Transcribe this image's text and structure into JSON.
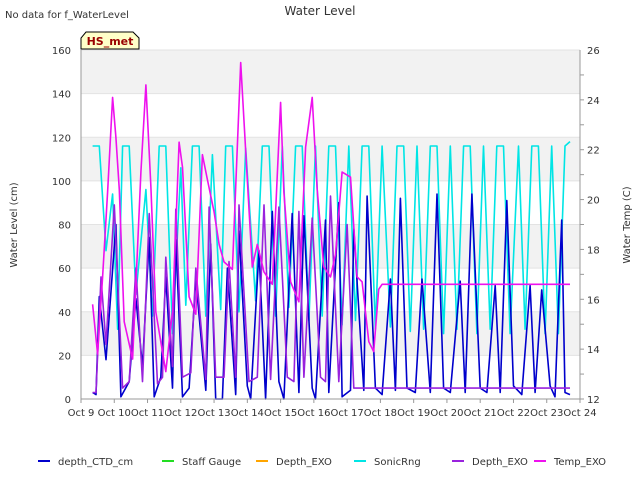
{
  "header": {
    "no_data_note": "No data for f_WaterLevel"
  },
  "station_badge": "HS_met",
  "chart_data": {
    "type": "line",
    "title": "Water Level",
    "ylabel": "Water Level (cm)",
    "y2label": "Water Temp (C)",
    "ylim": [
      0,
      160
    ],
    "y2lim": [
      12,
      26
    ],
    "yticks": [
      0,
      20,
      40,
      60,
      80,
      100,
      120,
      140,
      160
    ],
    "y2ticks": [
      12,
      14,
      16,
      18,
      20,
      22,
      24,
      26
    ],
    "xlim": [
      0,
      15
    ],
    "xtick_labels": [
      "Oct 9",
      "Oct 10",
      "Oct 11",
      "Oct 12",
      "Oct 13",
      "Oct 14",
      "Oct 15",
      "Oct 16",
      "Oct 17",
      "Oct 18",
      "Oct 19",
      "Oct 20",
      "Oct 21",
      "Oct 22",
      "Oct 23",
      "Oct 24"
    ],
    "grid": "horizontal bands",
    "legend": "bottom",
    "series": [
      {
        "name": "depth_CTD_cm",
        "color": "#0000cc",
        "axis": "left",
        "x": [
          0.35,
          0.45,
          0.55,
          0.75,
          1.05,
          1.2,
          1.45,
          1.65,
          1.85,
          2.05,
          2.2,
          2.4,
          2.55,
          2.75,
          2.85,
          3.05,
          3.25,
          3.45,
          3.75,
          3.9,
          4.05,
          4.25,
          4.4,
          4.65,
          4.75,
          5.0,
          5.1,
          5.35,
          5.55,
          5.75,
          5.95,
          6.1,
          6.35,
          6.55,
          6.7,
          6.95,
          7.05,
          7.35,
          7.45,
          7.75,
          7.85,
          8.1,
          8.2,
          8.5,
          8.6,
          8.85,
          9.05,
          9.3,
          9.45,
          9.6,
          9.8,
          10.05,
          10.25,
          10.5,
          10.7,
          10.9,
          11.1,
          11.4,
          11.55,
          11.75,
          12.0,
          12.2,
          12.45,
          12.6,
          12.8,
          13.0,
          13.25,
          13.5,
          13.65,
          13.85,
          14.1,
          14.25,
          14.45,
          14.55,
          14.7
        ],
        "y": [
          3,
          2,
          47,
          18,
          80,
          1,
          8,
          46,
          15,
          74,
          1,
          10,
          56,
          5,
          73,
          1,
          5,
          55,
          4,
          71,
          0,
          0,
          60,
          2,
          77,
          6,
          0,
          68,
          0,
          86,
          8,
          0,
          85,
          3,
          84,
          5,
          0,
          82,
          3,
          90,
          1,
          4,
          78,
          4,
          93,
          5,
          2,
          55,
          4,
          92,
          5,
          3,
          55,
          3,
          94,
          5,
          3,
          54,
          3,
          94,
          5,
          3,
          52,
          3,
          91,
          6,
          2,
          52,
          3,
          50,
          6,
          1,
          82,
          3,
          2
        ]
      },
      {
        "name": "Staff Gauge",
        "color": "#22dd22",
        "axis": "left",
        "x": [],
        "y": []
      },
      {
        "name": "Depth_EXO",
        "color": "#ffa500",
        "axis": "left",
        "x": [],
        "y": []
      },
      {
        "name": "SonicRng",
        "color": "#00e5e5",
        "axis": "left",
        "x": [
          0.35,
          0.55,
          0.75,
          0.95,
          1.1,
          1.25,
          1.45,
          1.65,
          1.95,
          2.15,
          2.35,
          2.55,
          2.75,
          3.0,
          3.15,
          3.35,
          3.55,
          3.75,
          3.95,
          4.2,
          4.35,
          4.55,
          4.75,
          4.95,
          5.25,
          5.45,
          5.65,
          5.85,
          6.05,
          6.25,
          6.45,
          6.65,
          6.85,
          7.05,
          7.25,
          7.45,
          7.65,
          7.85,
          8.05,
          8.25,
          8.45,
          8.65,
          8.85,
          9.05,
          9.3,
          9.5,
          9.7,
          9.9,
          10.1,
          10.3,
          10.5,
          10.7,
          10.9,
          11.1,
          11.3,
          11.5,
          11.7,
          11.9,
          12.1,
          12.3,
          12.5,
          12.7,
          12.9,
          13.15,
          13.35,
          13.55,
          13.75,
          13.95,
          14.15,
          14.35,
          14.55,
          14.7
        ],
        "y": [
          116,
          116,
          68,
          94,
          32,
          116,
          116,
          48,
          96,
          38,
          116,
          116,
          30,
          106,
          43,
          116,
          116,
          38,
          112,
          41,
          116,
          116,
          40,
          115,
          45,
          116,
          116,
          38,
          116,
          42,
          116,
          116,
          36,
          116,
          38,
          116,
          116,
          34,
          116,
          36,
          116,
          116,
          32,
          116,
          33,
          116,
          116,
          31,
          116,
          32,
          116,
          116,
          30,
          116,
          32,
          116,
          116,
          30,
          116,
          32,
          116,
          116,
          30,
          116,
          32,
          116,
          116,
          30,
          116,
          30,
          116,
          118
        ]
      },
      {
        "name": "Depth_EXO",
        "color": "#9922dd",
        "axis": "left",
        "x": [
          0.35,
          0.45,
          0.6,
          0.75,
          1.0,
          1.25,
          1.45,
          1.65,
          1.85,
          2.05,
          2.3,
          2.45,
          2.55,
          2.75,
          2.85,
          3.05,
          3.3,
          3.45,
          3.75,
          3.85,
          4.05,
          4.3,
          4.45,
          4.65,
          4.75,
          5.05,
          5.3,
          5.5,
          5.7,
          5.95,
          6.2,
          6.4,
          6.55,
          6.7,
          6.95,
          7.2,
          7.35,
          7.5,
          7.75,
          8.0,
          8.2,
          8.45,
          8.55,
          8.85,
          9.0,
          9.5,
          10.0,
          10.5,
          11.0,
          11.5,
          12.0,
          12.5,
          13.0,
          13.5,
          14.0,
          14.5,
          14.7
        ],
        "y": [
          3,
          3,
          56,
          25,
          89,
          5,
          8,
          60,
          8,
          85,
          7,
          10,
          65,
          15,
          87,
          10,
          12,
          60,
          9,
          88,
          10,
          10,
          63,
          10,
          89,
          8,
          10,
          89,
          9,
          88,
          10,
          8,
          86,
          10,
          83,
          10,
          8,
          93,
          8,
          80,
          5,
          5,
          5,
          5,
          5,
          5,
          5,
          5,
          5,
          5,
          5,
          5,
          5,
          5,
          5,
          5,
          5
        ]
      },
      {
        "name": "Temp_EXO",
        "color": "#ee11ee",
        "axis": "right",
        "x": [
          0.35,
          0.5,
          0.65,
          0.8,
          0.95,
          1.05,
          1.15,
          1.3,
          1.55,
          1.8,
          1.95,
          2.1,
          2.25,
          2.55,
          2.75,
          2.95,
          3.05,
          3.25,
          3.45,
          3.65,
          3.8,
          4.0,
          4.15,
          4.3,
          4.55,
          4.8,
          5.0,
          5.15,
          5.3,
          5.5,
          5.75,
          6.0,
          6.1,
          6.3,
          6.55,
          6.75,
          6.95,
          7.1,
          7.3,
          7.5,
          7.65,
          7.85,
          8.1,
          8.3,
          8.45,
          8.65,
          8.8,
          8.95,
          9.05,
          9.6,
          10.5,
          11.5,
          12.5,
          13.5,
          14.5,
          14.7
        ],
        "y": [
          15.8,
          13.8,
          16.9,
          20.3,
          24.1,
          22.5,
          20.4,
          15.1,
          13.6,
          21.1,
          24.6,
          20.5,
          15.5,
          13.1,
          15.5,
          22.3,
          21.3,
          16.1,
          15.4,
          21.8,
          20.8,
          19.5,
          18.2,
          17.5,
          17.2,
          25.5,
          20.8,
          17.3,
          18.2,
          17.1,
          16.6,
          23.9,
          20.3,
          16.7,
          15.9,
          22.1,
          24.1,
          20.4,
          17.3,
          16.9,
          17.8,
          21.1,
          20.9,
          16.9,
          16.7,
          14.3,
          13.9,
          16.4,
          16.6,
          16.6,
          16.6,
          16.6,
          16.6,
          16.6,
          16.6,
          16.6
        ]
      }
    ]
  }
}
